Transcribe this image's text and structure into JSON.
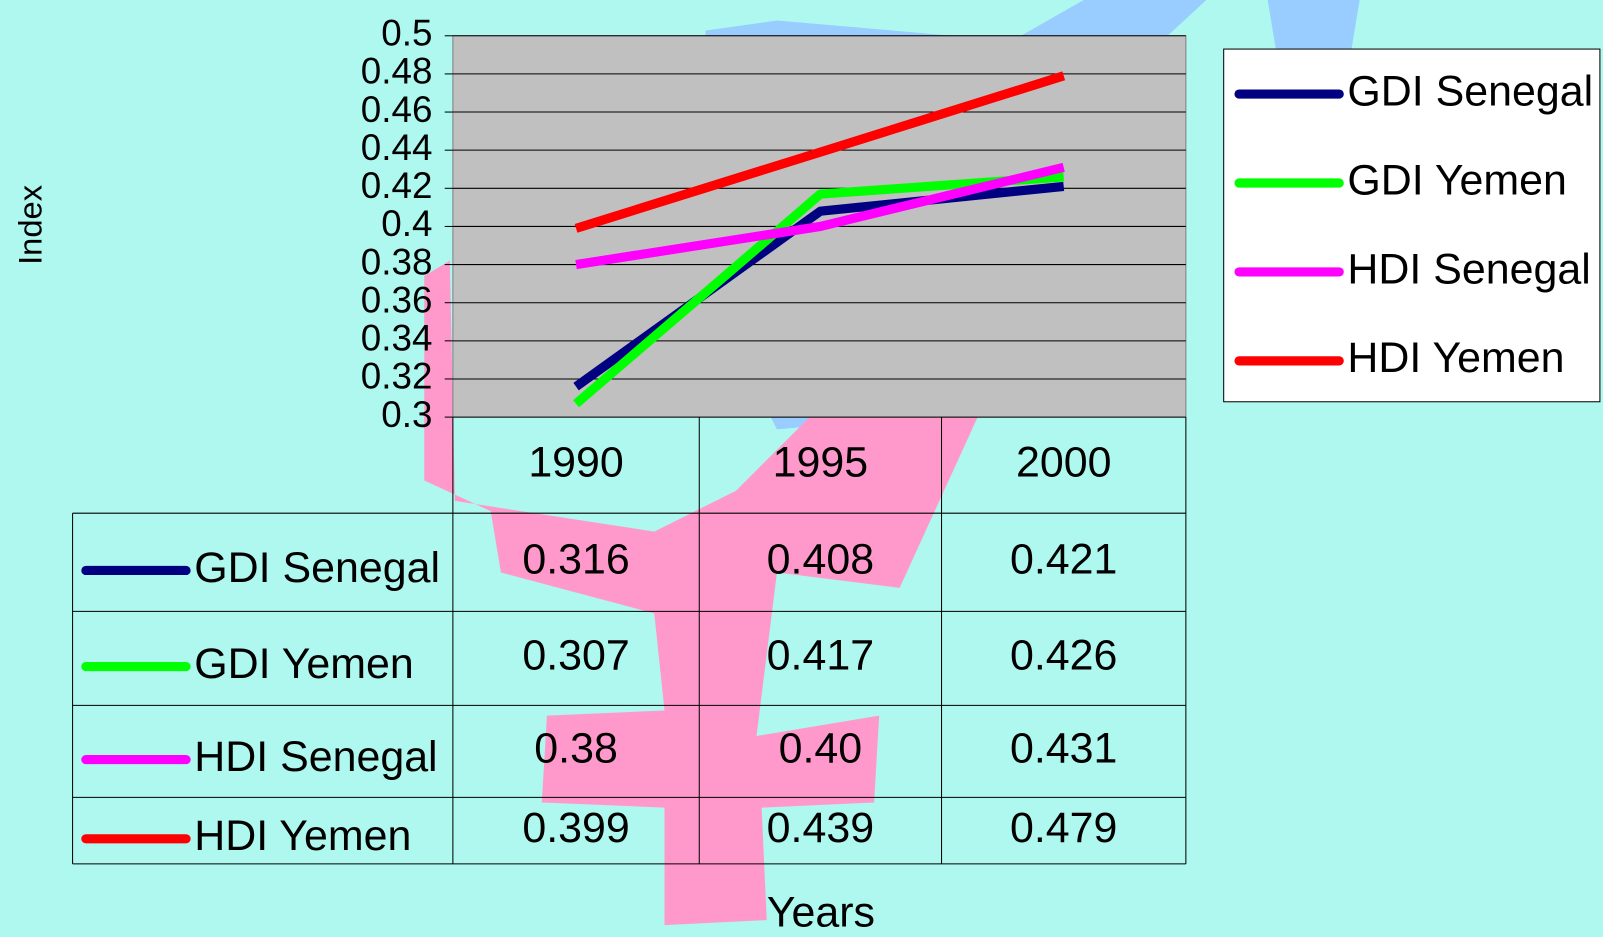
{
  "chart_data": {
    "type": "line",
    "ylabel": "Index",
    "xlabel": "Years",
    "categories": [
      "1990",
      "1995",
      "2000"
    ],
    "series": [
      {
        "name": "GDI Senegal",
        "color": "#000080",
        "values": [
          0.316,
          0.408,
          0.421
        ],
        "value_labels": [
          "0.316",
          "0.408",
          "0.421"
        ]
      },
      {
        "name": "GDI Yemen",
        "color": "#00ff00",
        "values": [
          0.307,
          0.417,
          0.426
        ],
        "value_labels": [
          "0.307",
          "0.417",
          "0.426"
        ]
      },
      {
        "name": "HDI Senegal",
        "color": "#ff00ff",
        "values": [
          0.38,
          0.4,
          0.431
        ],
        "value_labels": [
          "0.38",
          "0.40",
          "0.431"
        ]
      },
      {
        "name": "HDI Yemen",
        "color": "#ff0000",
        "values": [
          0.399,
          0.439,
          0.479
        ],
        "value_labels": [
          "0.399",
          "0.439",
          "0.479"
        ]
      }
    ],
    "ylim": [
      0.3,
      0.5
    ],
    "yticks": [
      0.3,
      0.32,
      0.34,
      0.36,
      0.38,
      0.4,
      0.42,
      0.44,
      0.46,
      0.48,
      0.5
    ],
    "grid": true,
    "legend": "right",
    "data_table": true
  }
}
